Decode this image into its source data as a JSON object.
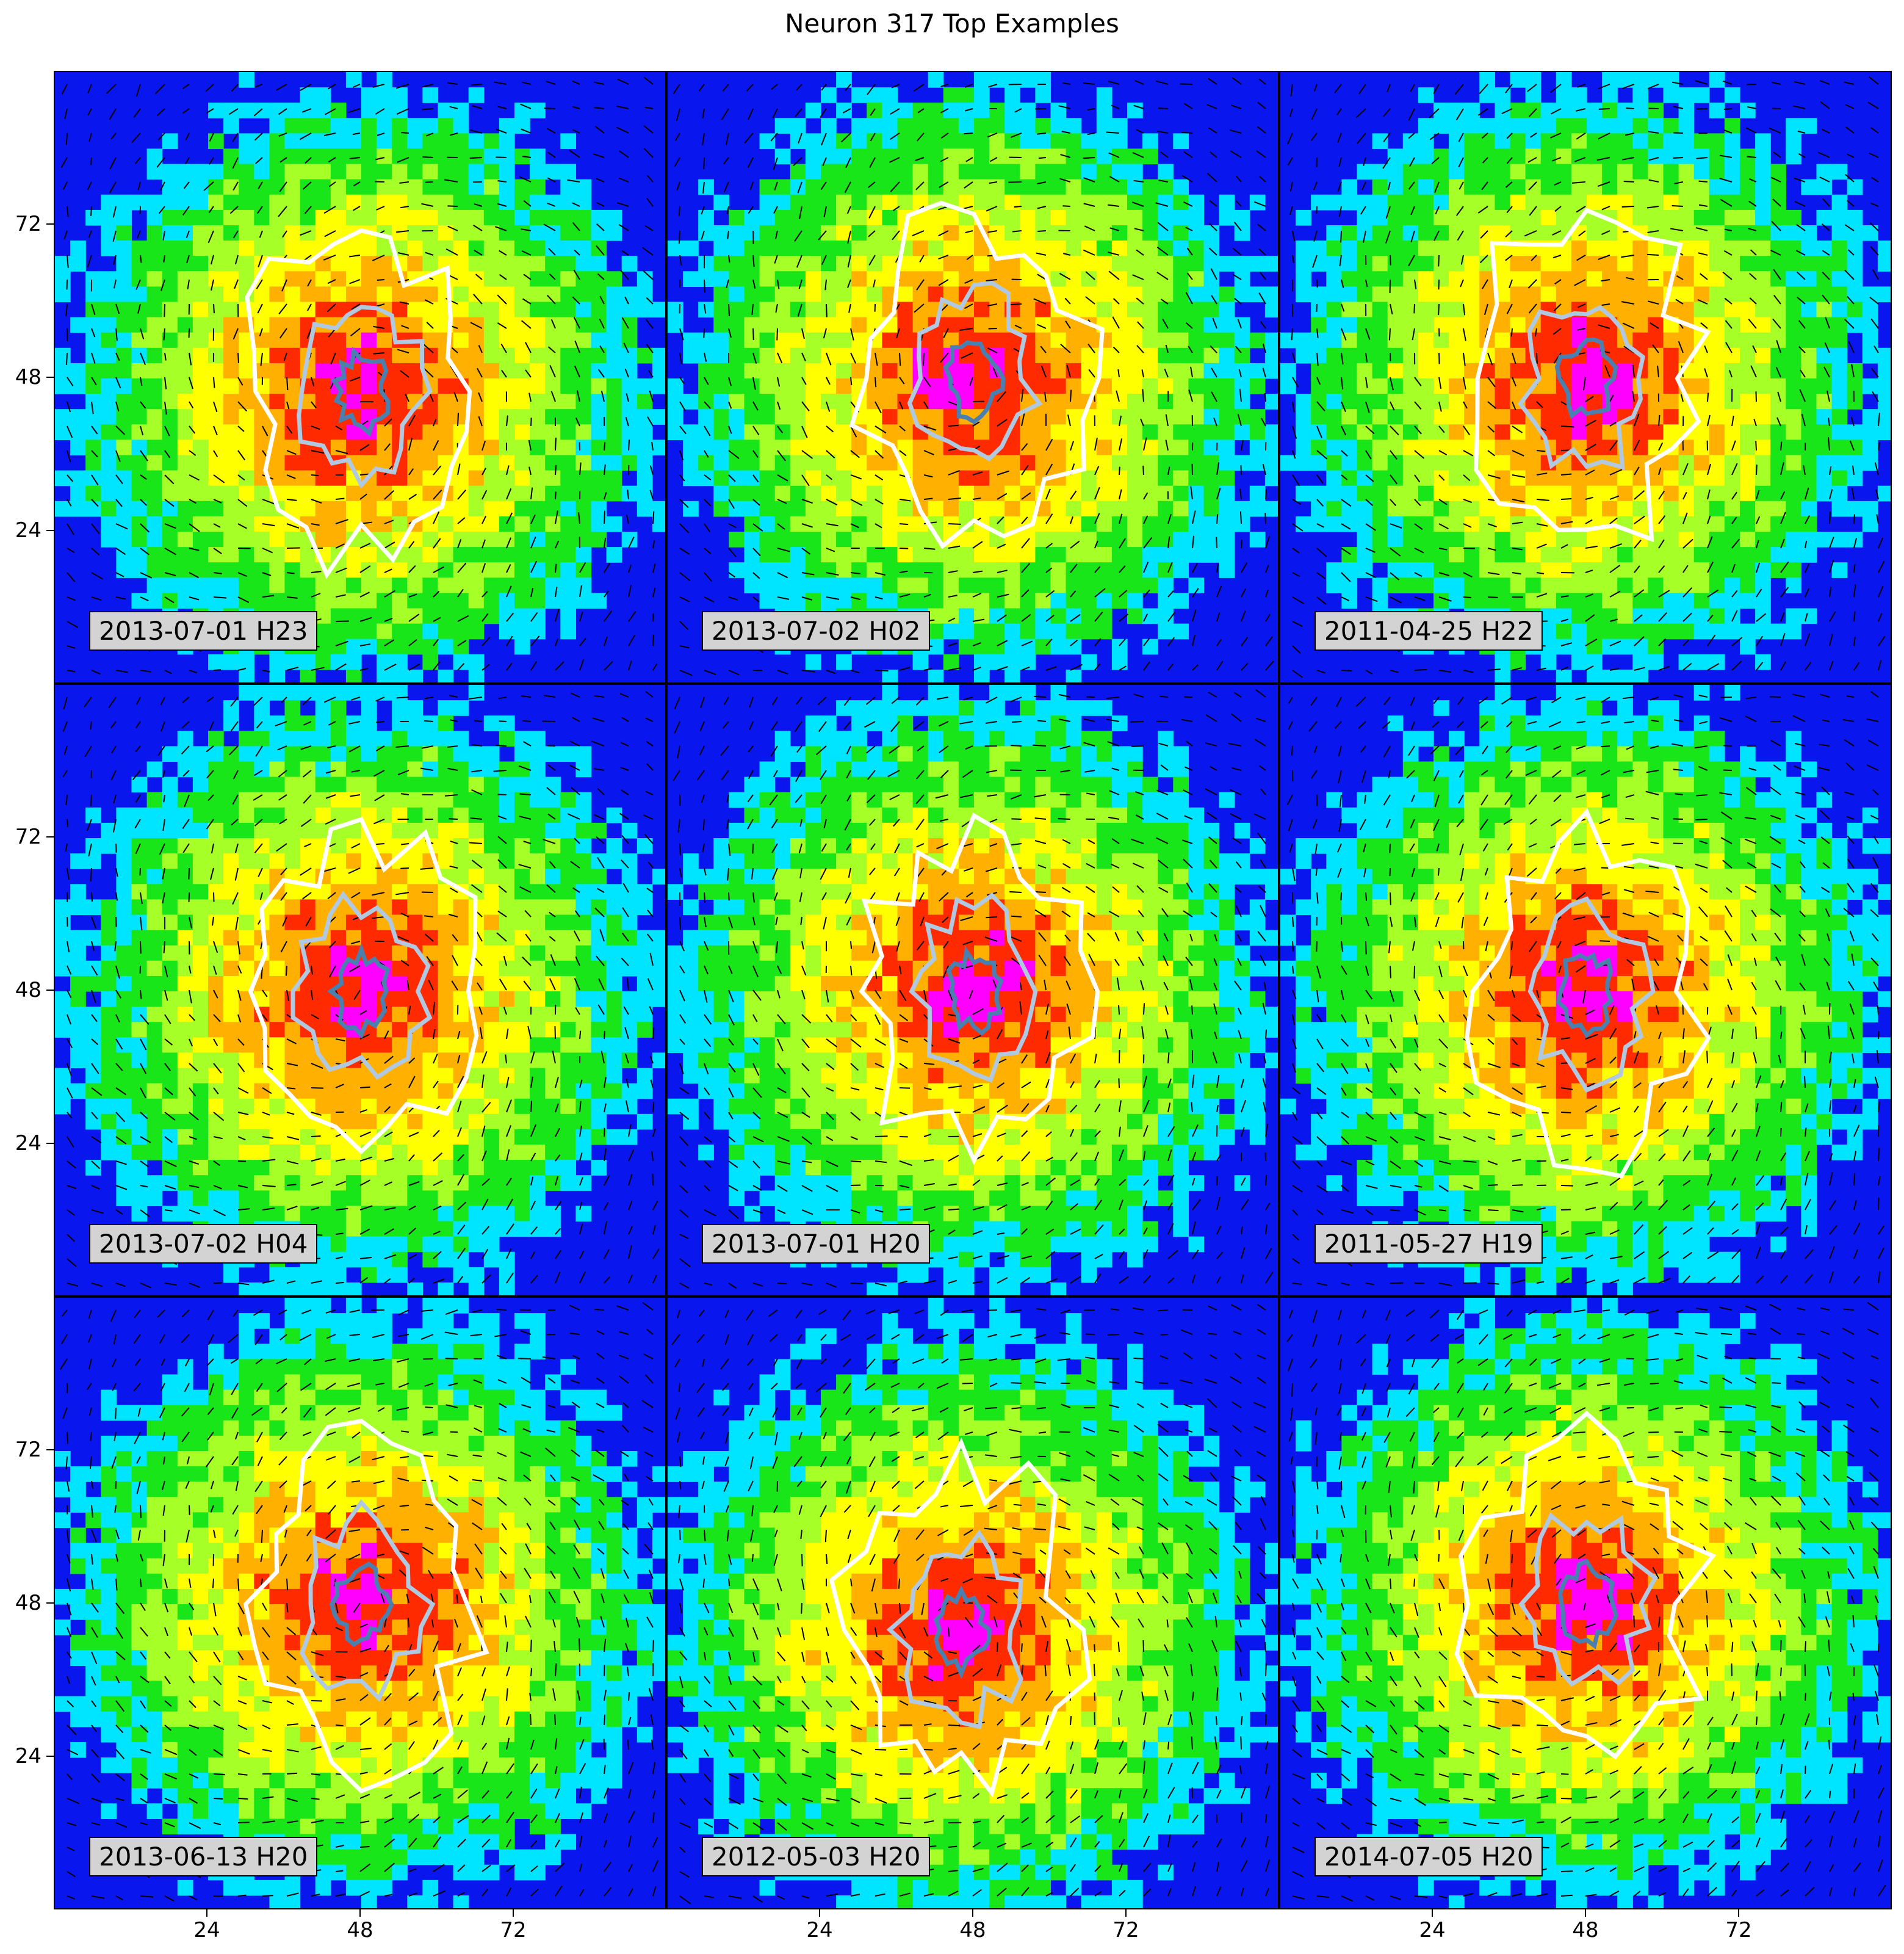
{
  "title": "Neuron 317 Top Examples",
  "chart_data": {
    "type": "heatmap",
    "title": "Neuron 317 Top Examples",
    "grid": {
      "rows": 3,
      "cols": 3
    },
    "x_ticks": [
      "24",
      "48",
      "72"
    ],
    "y_ticks": [
      "72",
      "48",
      "24"
    ],
    "x_tick_values": [
      24,
      48,
      72
    ],
    "y_tick_values": [
      72,
      48,
      24
    ],
    "axis_range": [
      0,
      96
    ],
    "colormap": [
      "#0a16ee",
      "#00e5ff",
      "#19e619",
      "#a6ff26",
      "#ffff00",
      "#ffb000",
      "#ff2a00",
      "#ff00ff"
    ],
    "overlay": [
      "wind-vector-arrows",
      "contours-white",
      "contours-lightblue",
      "contours-steelblue"
    ],
    "panels": [
      {
        "label": "2013-07-01 H23",
        "peak": [
          48,
          46
        ]
      },
      {
        "label": "2013-07-02 H02",
        "peak": [
          48,
          48
        ]
      },
      {
        "label": "2011-04-25 H22",
        "peak": [
          48,
          48
        ]
      },
      {
        "label": "2013-07-02 H04",
        "peak": [
          48,
          48
        ]
      },
      {
        "label": "2013-07-01 H20",
        "peak": [
          48,
          48
        ]
      },
      {
        "label": "2011-05-27 H19",
        "peak": [
          48,
          48
        ]
      },
      {
        "label": "2013-06-13 H20",
        "peak": [
          48,
          48
        ]
      },
      {
        "label": "2012-05-03 H20",
        "peak": [
          46,
          44
        ]
      },
      {
        "label": "2014-07-05 H20",
        "peak": [
          48,
          48
        ]
      }
    ]
  }
}
